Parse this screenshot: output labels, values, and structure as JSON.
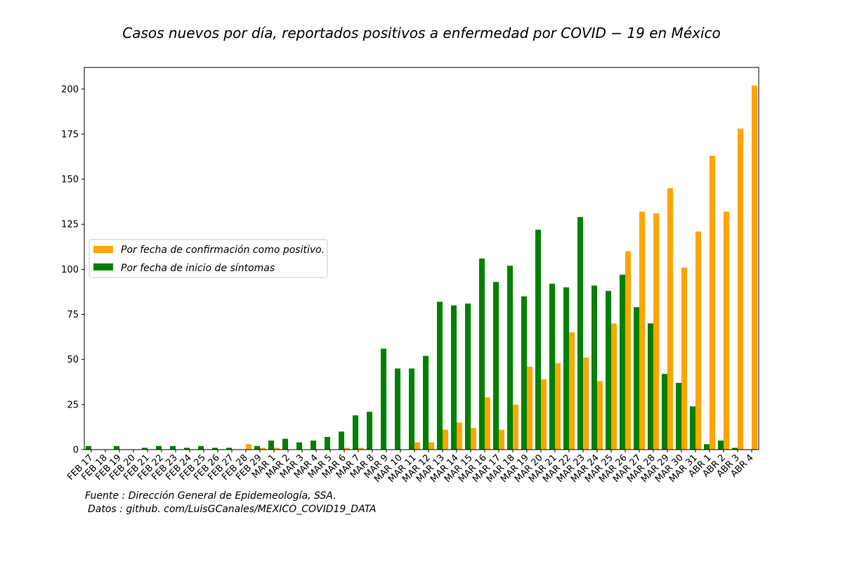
{
  "chart_data": {
    "type": "bar",
    "title": "Casos nuevos por día, reportados positivos a enfermedad por COVID − 19 en México",
    "xlabel": "",
    "ylabel": "",
    "ylim": [
      0,
      212
    ],
    "yticks": [
      0,
      25,
      50,
      75,
      100,
      125,
      150,
      175,
      200
    ],
    "grid": false,
    "legend_position": "center-left",
    "categories": [
      "FEB 17",
      "FEB 18",
      "FEB 19",
      "FEB 20",
      "FEB 21",
      "FEB 22",
      "FEB 23",
      "FEB 24",
      "FEB 25",
      "FEB 26",
      "FEB 27",
      "FEB 28",
      "FEB 29",
      "MAR 1",
      "MAR 2",
      "MAR 3",
      "MAR 4",
      "MAR 5",
      "MAR 6",
      "MAR 7",
      "MAR 8",
      "MAR 9",
      "MAR 10",
      "MAR 11",
      "MAR 12",
      "MAR 13",
      "MAR 14",
      "MAR 15",
      "MAR 16",
      "MAR 17",
      "MAR 18",
      "MAR 19",
      "MAR 20",
      "MAR 21",
      "MAR 22",
      "MAR 23",
      "MAR 24",
      "MAR 25",
      "MAR 26",
      "MAR 27",
      "MAR 28",
      "MAR 29",
      "MAR 30",
      "MAR 31",
      "ABR 1",
      "ABR 2",
      "ABR 3",
      "ABR 4"
    ],
    "series": [
      {
        "name": "Por fecha de confirmación como positivo.",
        "color": "#ffa500",
        "values": [
          0,
          0,
          0,
          0,
          0,
          0,
          0,
          0,
          0,
          0,
          0,
          3,
          1,
          1,
          0,
          0,
          0,
          0,
          1,
          1,
          0,
          0,
          0,
          4,
          4,
          11,
          15,
          12,
          29,
          11,
          25,
          46,
          39,
          48,
          65,
          51,
          38,
          70,
          110,
          132,
          131,
          145,
          101,
          121,
          163,
          132,
          178,
          202
        ]
      },
      {
        "name": "Por fecha de inicio de síntomas",
        "color": "#008000",
        "values": [
          2,
          0,
          2,
          0,
          1,
          2,
          2,
          1,
          2,
          1,
          1,
          0,
          2,
          5,
          6,
          4,
          5,
          7,
          10,
          19,
          21,
          56,
          45,
          45,
          52,
          82,
          80,
          81,
          106,
          93,
          102,
          85,
          122,
          92,
          90,
          129,
          91,
          88,
          97,
          79,
          70,
          42,
          37,
          24,
          3,
          5,
          1,
          0
        ]
      }
    ]
  },
  "footnotes": {
    "source": "Fuente :  Dirección General de Epidemeología, SSA.",
    "data": "Datos :  github. com/LuisGCanales/MEXICO_COVID19_DATA"
  }
}
